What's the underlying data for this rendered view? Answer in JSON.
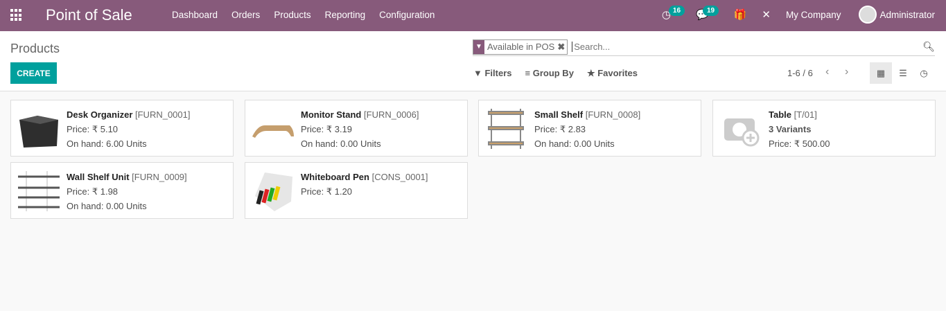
{
  "nav": {
    "brand": "Point of Sale",
    "menu": [
      "Dashboard",
      "Orders",
      "Products",
      "Reporting",
      "Configuration"
    ],
    "activity_count": "16",
    "messages_count": "19",
    "company": "My Company",
    "user": "Administrator"
  },
  "control": {
    "title": "Products",
    "create": "CREATE",
    "facet": "Available in POS",
    "search_placeholder": "Search...",
    "filters": "Filters",
    "group_by": "Group By",
    "favorites": "Favorites",
    "pager": "1-6 / 6"
  },
  "products": [
    {
      "name": "Desk Organizer",
      "code": "[FURN_0001]",
      "line1": "Price: ₹ 5.10",
      "line2": "On hand: 6.00 Units",
      "image": "desk-organizer"
    },
    {
      "name": "Monitor Stand",
      "code": "[FURN_0006]",
      "line1": "Price: ₹ 3.19",
      "line2": "On hand: 0.00 Units",
      "image": "monitor-stand"
    },
    {
      "name": "Small Shelf",
      "code": "[FURN_0008]",
      "line1": "Price: ₹ 2.83",
      "line2": "On hand: 0.00 Units",
      "image": "small-shelf"
    },
    {
      "name": "Table",
      "code": "[T/01]",
      "variants": "3 Variants",
      "line2": "Price: ₹ 500.00",
      "image": "placeholder-camera"
    },
    {
      "name": "Wall Shelf Unit",
      "code": "[FURN_0009]",
      "line1": "Price: ₹ 1.98",
      "line2": "On hand: 0.00 Units",
      "image": "wall-shelf"
    },
    {
      "name": "Whiteboard Pen",
      "code": "[CONS_0001]",
      "line1": "Price: ₹ 1.20",
      "image": "whiteboard-pens"
    }
  ]
}
